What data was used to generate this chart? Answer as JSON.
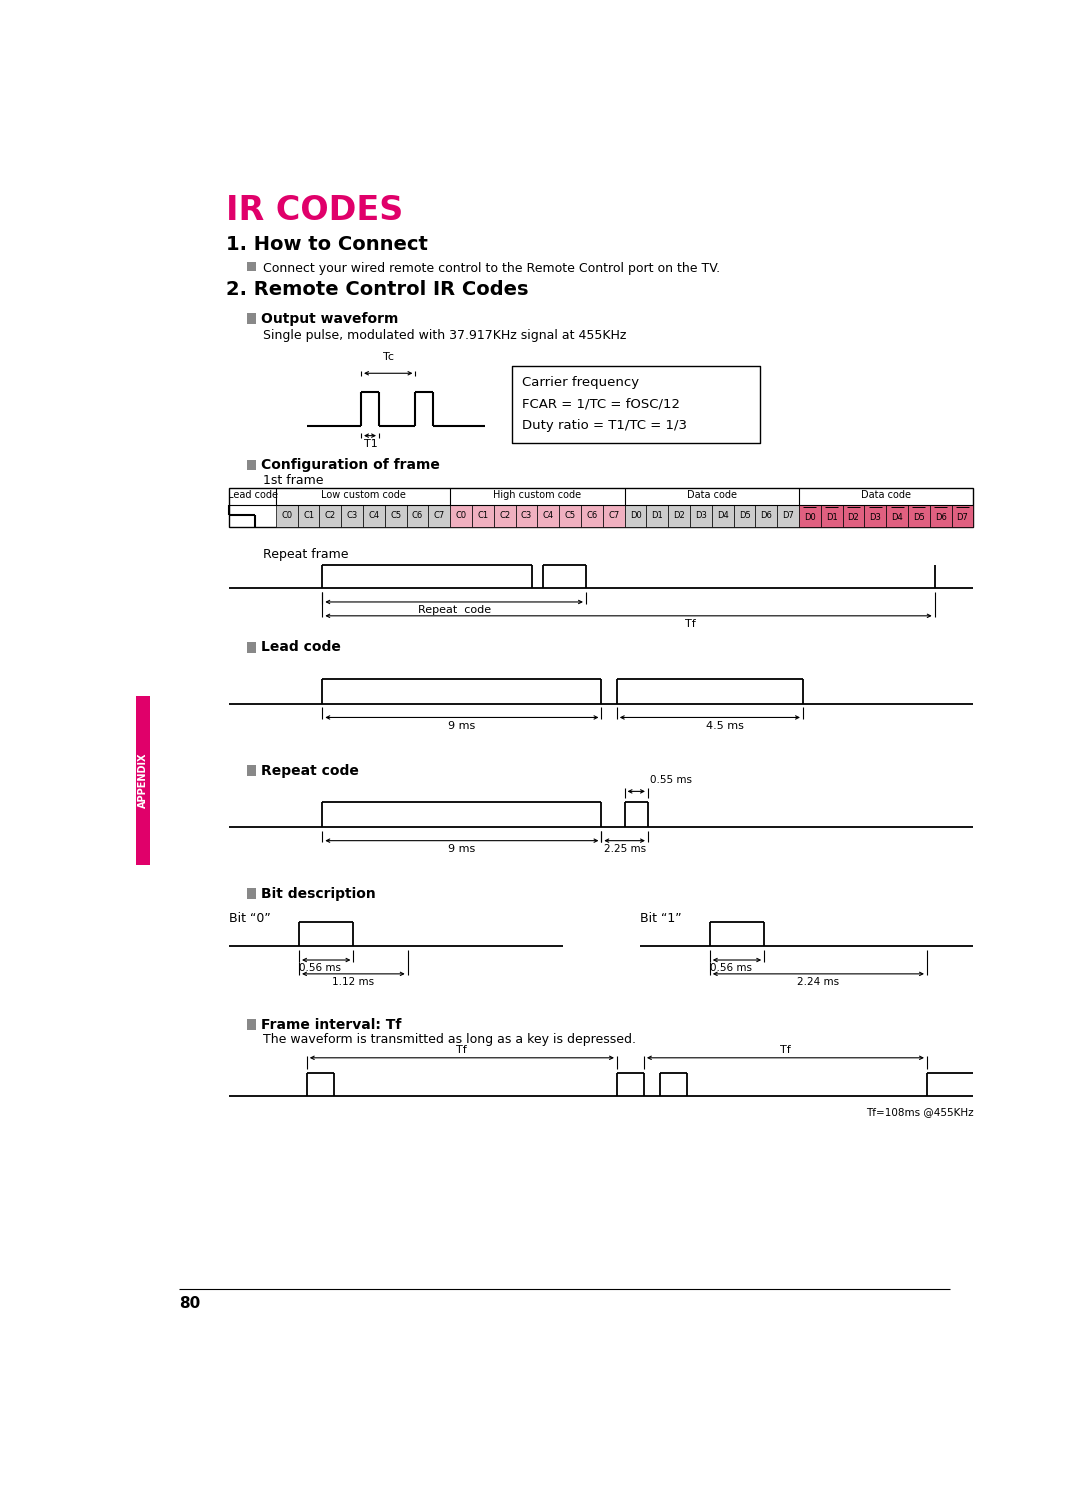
{
  "title": "IR CODES",
  "page_number": "80",
  "section1_title": "1. How to Connect",
  "section1_bullet": "Connect your wired remote control to the Remote Control port on the TV.",
  "section2_title": "2. Remote Control IR Codes",
  "output_waveform_title": "Output waveform",
  "output_waveform_desc": "Single pulse, modulated with 37.917KHz signal at 455KHz",
  "carrier_box_lines": [
    "Carrier frequency",
    "FCAR = 1/TC = fOSC/12",
    "Duty ratio = T1/TC = 1/3"
  ],
  "config_title": "Configuration of frame",
  "first_frame_label": "1st frame",
  "low_custom_cells": [
    "C0",
    "C1",
    "C2",
    "C3",
    "C4",
    "C5",
    "C6",
    "C7"
  ],
  "high_custom_cells": [
    "C0",
    "C1",
    "C2",
    "C3",
    "C4",
    "C5",
    "C6",
    "C7"
  ],
  "data_cells1": [
    "D0",
    "D1",
    "D2",
    "D3",
    "D4",
    "D5",
    "D6",
    "D7"
  ],
  "data_cells2": [
    "D0",
    "D1",
    "D2",
    "D3",
    "D4",
    "D5",
    "D6",
    "D7"
  ],
  "repeat_frame_label": "Repeat frame",
  "repeat_code_label": "Repeat  code",
  "tf_label": "Tf",
  "lead_code_title": "Lead code",
  "lead_9ms": "9 ms",
  "lead_45ms": "4.5 ms",
  "repeat_code_title": "Repeat code",
  "repeat_9ms": "9 ms",
  "repeat_225ms": "2.25 ms",
  "repeat_055ms": "0.55 ms",
  "bit_desc_title": "Bit description",
  "bit0_label": "Bit “0”",
  "bit1_label": "Bit “1”",
  "bit0_056ms": "0.56 ms",
  "bit0_112ms": "1.12 ms",
  "bit1_056ms": "0.56 ms",
  "bit1_224ms": "2.24 ms",
  "frame_interval_title": "Frame interval: Tf",
  "frame_interval_desc": "The waveform is transmitted as long as a key is depressed.",
  "tf_label1": "Tf",
  "tf_label2": "Tf",
  "tf_108ms": "Tf=108ms @455KHz",
  "appendix_label": "APPENDIX",
  "bg_color": "#ffffff",
  "title_color": "#e0006a",
  "left_bar_color": "#e0006a"
}
